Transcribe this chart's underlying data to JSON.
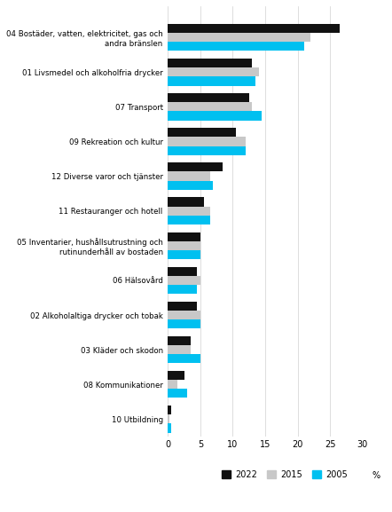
{
  "categories": [
    "04 Bostäder, vatten, elektricitet, gas och\nandra bränslen",
    "01 Livsmedel och alkoholfria drycker",
    "07 Transport",
    "09 Rekreation och kultur",
    "12 Diverse varor och tjänster",
    "11 Restauranger och hotell",
    "05 Inventarier, hushållsutrustning och\nrutinunderhåll av bostaden",
    "06 Hälsovård",
    "02 Alkoholaltiga drycker och tobak",
    "03 Kläder och skodon",
    "08 Kommunikationer",
    "10 Utbildning"
  ],
  "values_2022": [
    26.5,
    13.0,
    12.5,
    10.5,
    8.5,
    5.5,
    5.0,
    4.5,
    4.5,
    3.5,
    2.5,
    0.5
  ],
  "values_2015": [
    22.0,
    14.0,
    13.0,
    12.0,
    6.5,
    6.5,
    5.0,
    5.0,
    5.0,
    3.5,
    1.5,
    0.3
  ],
  "values_2005": [
    21.0,
    13.5,
    14.5,
    12.0,
    7.0,
    6.5,
    5.0,
    4.5,
    5.0,
    5.0,
    3.0,
    0.5
  ],
  "color_2022": "#111111",
  "color_2015": "#c8c8c8",
  "color_2005": "#00c0f0",
  "xlim": [
    0,
    30
  ],
  "xticks": [
    0,
    5,
    10,
    15,
    20,
    25,
    30
  ],
  "xlabel": "%",
  "legend_labels": [
    "2022",
    "2015",
    "2005"
  ],
  "bar_height": 0.26,
  "figsize": [
    4.42,
    5.77
  ],
  "dpi": 100
}
